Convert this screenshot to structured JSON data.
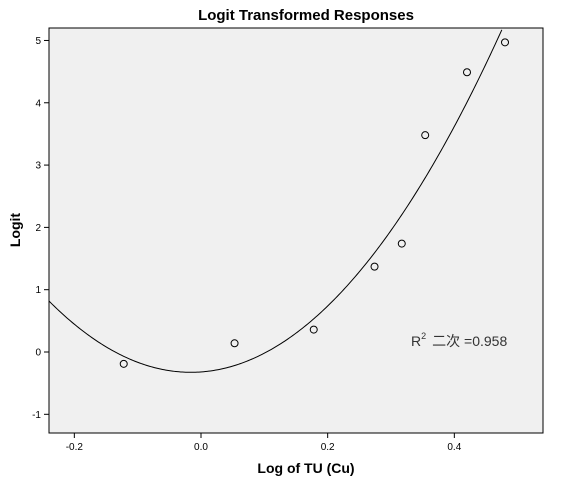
{
  "chart_data": {
    "type": "scatter",
    "title": "Logit Transformed Responses",
    "xlabel": "Log of TU (Cu)",
    "ylabel": "Logit",
    "xlim": [
      -0.24,
      0.54
    ],
    "ylim": [
      -1.3,
      5.2
    ],
    "x_ticks": [
      -0.2,
      0.0,
      0.2,
      0.4
    ],
    "x_tick_labels": [
      "-0.2",
      "0.0",
      "0.2",
      "0.4"
    ],
    "y_ticks": [
      -1,
      0,
      1,
      2,
      3,
      4,
      5
    ],
    "y_tick_labels": [
      "-1",
      "0",
      "1",
      "2",
      "3",
      "4",
      "5"
    ],
    "grid": false,
    "background": "#f0f0f0",
    "points": [
      {
        "x": -0.122,
        "y": -0.19
      },
      {
        "x": 0.053,
        "y": 0.14
      },
      {
        "x": 0.178,
        "y": 0.36
      },
      {
        "x": 0.274,
        "y": 1.37
      },
      {
        "x": 0.317,
        "y": 1.74
      },
      {
        "x": 0.354,
        "y": 3.48
      },
      {
        "x": 0.42,
        "y": 4.49
      },
      {
        "x": 0.48,
        "y": 4.97
      }
    ],
    "fit": {
      "type": "quadratic",
      "coefficients": [
        -0.32,
        0.73,
        22.8
      ],
      "annotation_base": "R",
      "annotation_sup": "2",
      "annotation_text": "二次 =0.958"
    }
  }
}
